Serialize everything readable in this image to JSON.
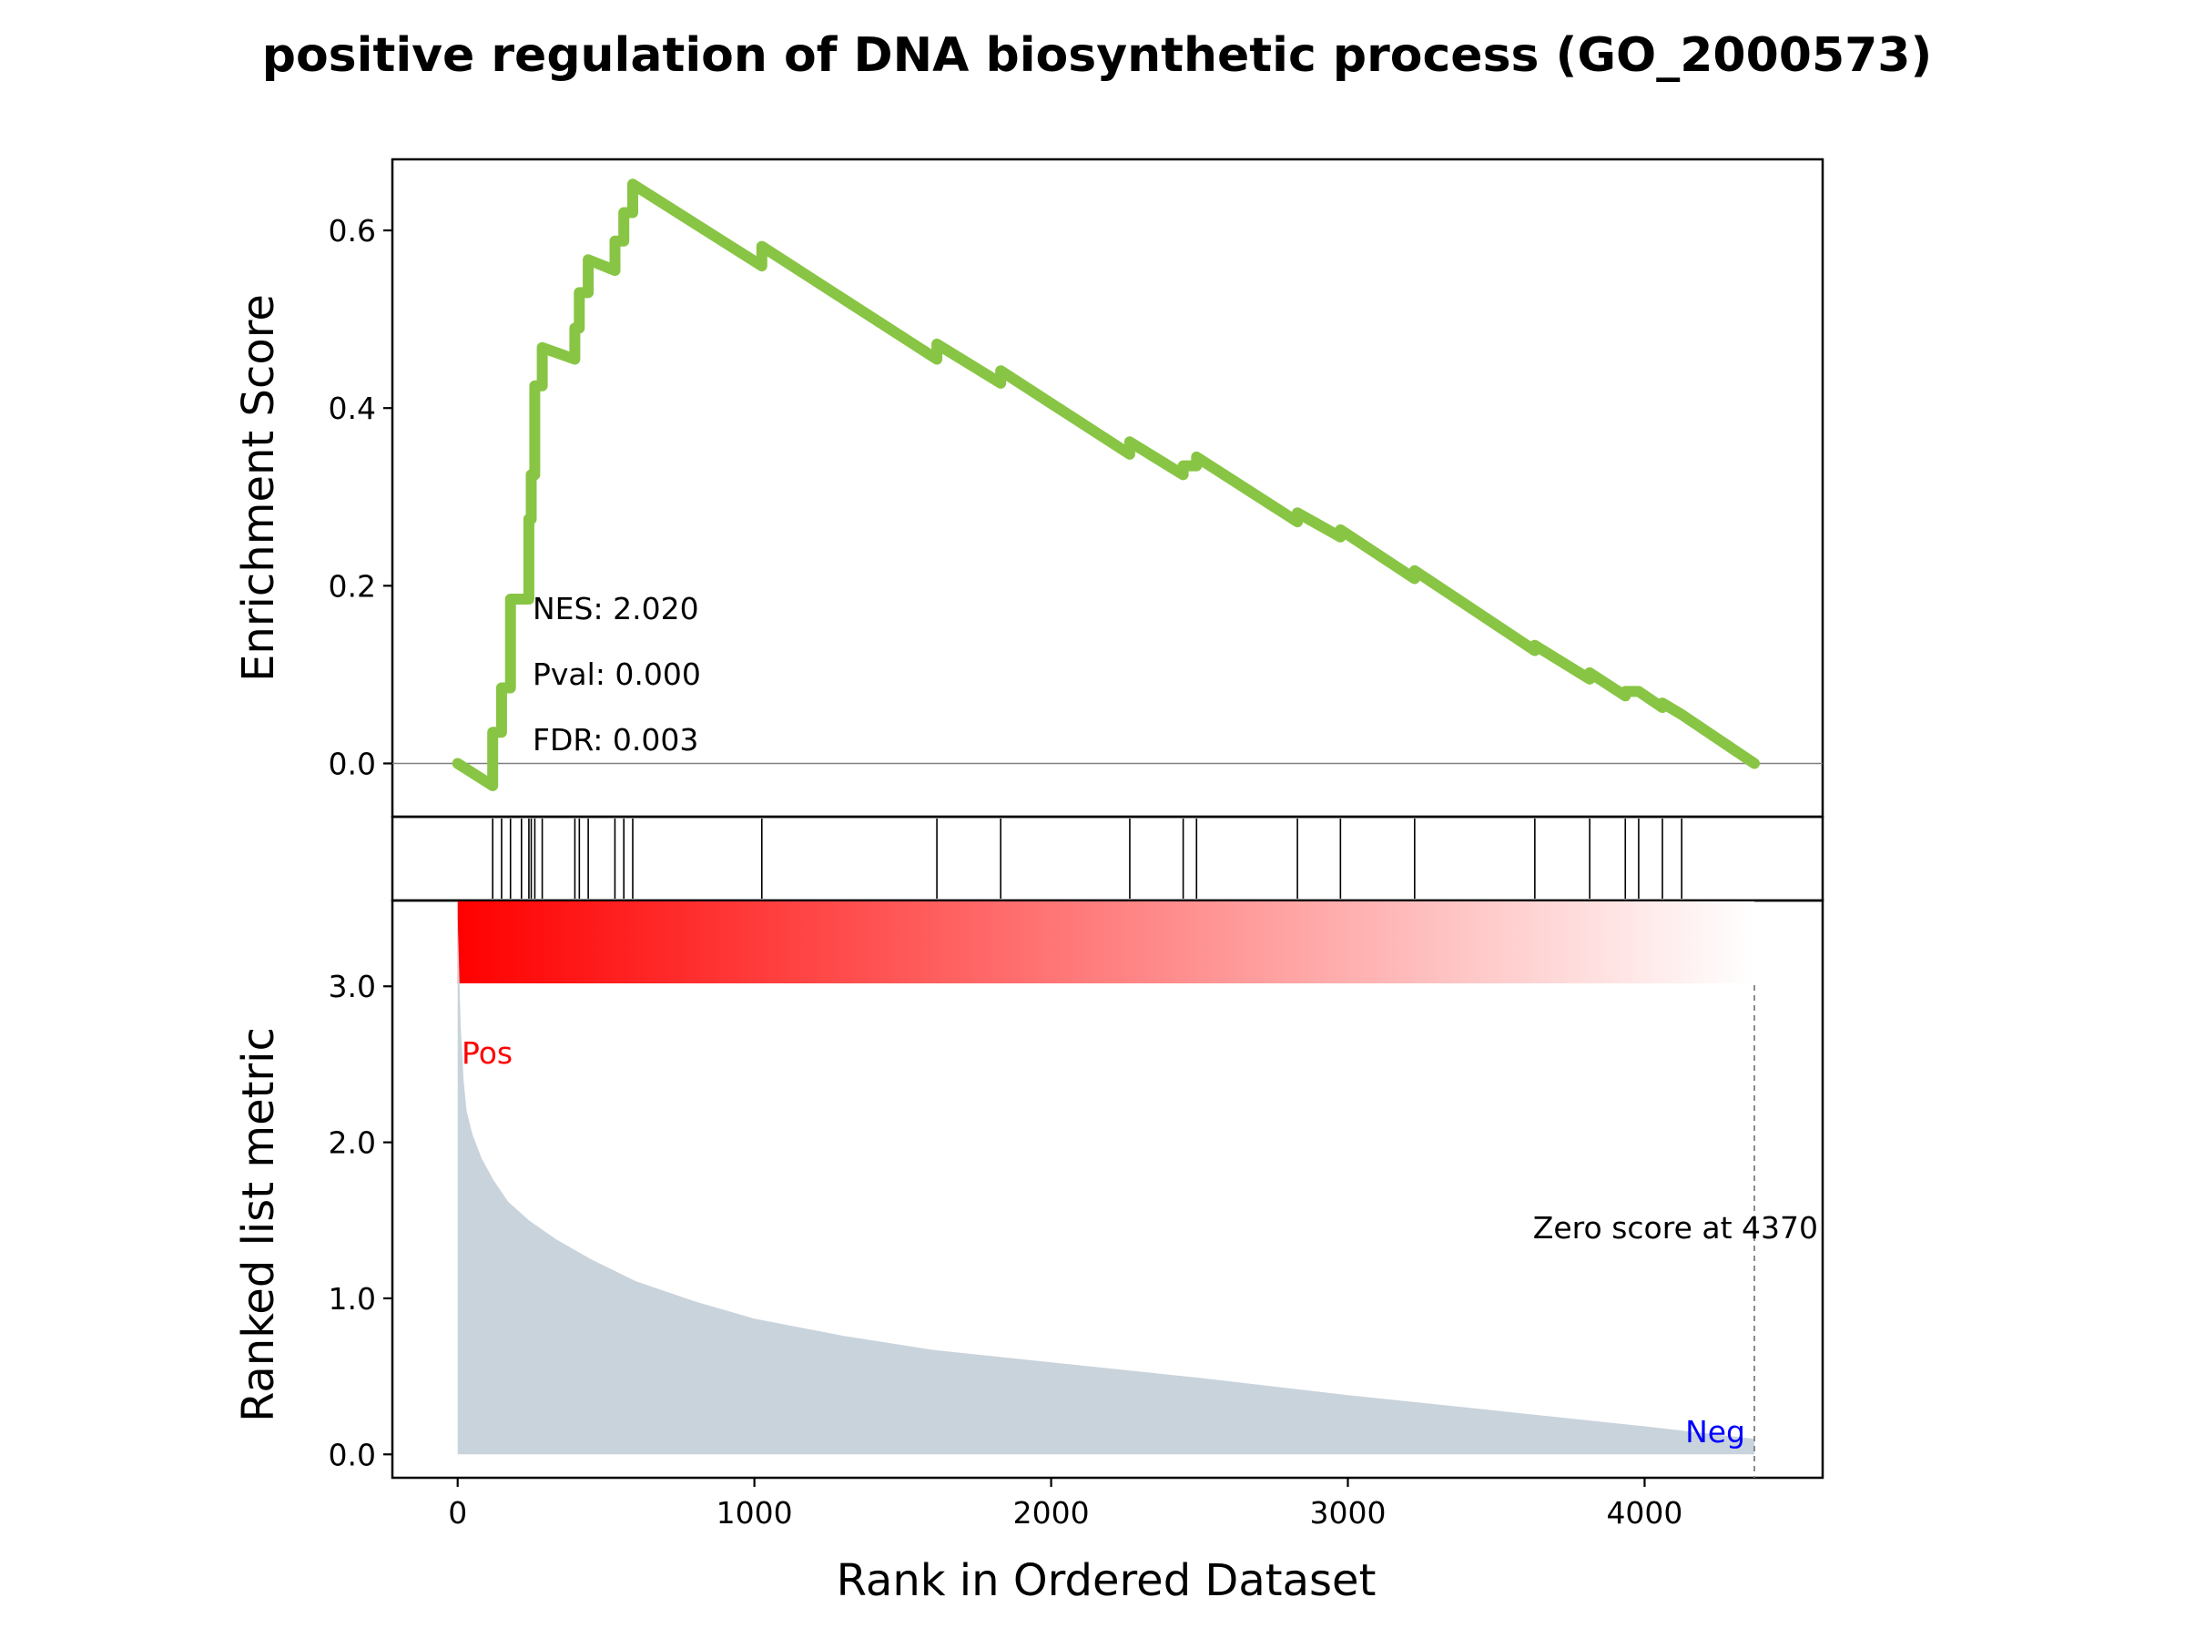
{
  "chart_data": {
    "type": "line",
    "title": "positive regulation of DNA biosynthetic process (GO_2000573)",
    "xlabel": "Rank in Ordered Dataset",
    "xlim": [
      -220,
      4600
    ],
    "x_ticks": [
      "0",
      "1000",
      "2000",
      "3000",
      "4000"
    ],
    "colors": {
      "es_line": "#88c544",
      "hits": "#000000",
      "metric_fill": "#c9d3dc",
      "pos_label": "#ff0000",
      "neg_label": "#0000ff",
      "gradient_start": "#ff0000",
      "gradient_end": "#ffffff"
    },
    "enrichment": {
      "ylabel": "Enrichment Score",
      "ylim": [
        -0.06,
        0.68
      ],
      "y_ticks": [
        "0.0",
        "0.2",
        "0.4",
        "0.6"
      ],
      "nes": "NES: 2.020",
      "pval": "Pval: 0.000",
      "fdr": "FDR: 0.003",
      "points": [
        [
          0,
          0.0
        ],
        [
          118,
          -0.025
        ],
        [
          118,
          0.035
        ],
        [
          148,
          0.035
        ],
        [
          148,
          0.085
        ],
        [
          178,
          0.085
        ],
        [
          178,
          0.185
        ],
        [
          240,
          0.185
        ],
        [
          240,
          0.275
        ],
        [
          248,
          0.275
        ],
        [
          248,
          0.325
        ],
        [
          260,
          0.325
        ],
        [
          260,
          0.425
        ],
        [
          285,
          0.425
        ],
        [
          285,
          0.468
        ],
        [
          395,
          0.455
        ],
        [
          395,
          0.49
        ],
        [
          410,
          0.49
        ],
        [
          410,
          0.53
        ],
        [
          440,
          0.53
        ],
        [
          440,
          0.567
        ],
        [
          530,
          0.555
        ],
        [
          530,
          0.588
        ],
        [
          560,
          0.588
        ],
        [
          560,
          0.62
        ],
        [
          590,
          0.62
        ],
        [
          590,
          0.652
        ],
        [
          1025,
          0.56
        ],
        [
          1025,
          0.582
        ],
        [
          1615,
          0.455
        ],
        [
          1615,
          0.472
        ],
        [
          1830,
          0.428
        ],
        [
          1830,
          0.442
        ],
        [
          2265,
          0.348
        ],
        [
          2265,
          0.362
        ],
        [
          2445,
          0.325
        ],
        [
          2445,
          0.335
        ],
        [
          2490,
          0.335
        ],
        [
          2490,
          0.345
        ],
        [
          2830,
          0.272
        ],
        [
          2830,
          0.282
        ],
        [
          2975,
          0.255
        ],
        [
          2975,
          0.263
        ],
        [
          3225,
          0.208
        ],
        [
          3225,
          0.217
        ],
        [
          3630,
          0.127
        ],
        [
          3630,
          0.133
        ],
        [
          3815,
          0.095
        ],
        [
          3815,
          0.102
        ],
        [
          3935,
          0.076
        ],
        [
          3935,
          0.081
        ],
        [
          3980,
          0.081
        ],
        [
          4060,
          0.063
        ],
        [
          4060,
          0.068
        ],
        [
          4125,
          0.055
        ],
        [
          4370,
          0.0
        ]
      ],
      "zero_line": 0.0
    },
    "hits": [
      118,
      148,
      178,
      215,
      240,
      248,
      260,
      285,
      395,
      410,
      440,
      530,
      560,
      590,
      1025,
      1615,
      1830,
      2265,
      2445,
      2490,
      2830,
      2975,
      3225,
      3630,
      3815,
      3935,
      3980,
      4060,
      4125
    ],
    "ranked_metric": {
      "ylabel": "Ranked list metric",
      "ylim": [
        -0.15,
        3.55
      ],
      "y_ticks": [
        "0.0",
        "1.0",
        "2.0",
        "3.0"
      ],
      "pos_label": "Pos",
      "neg_label": "Neg",
      "zero_score_label": "Zero score at 4370",
      "zero_score_at": 4370,
      "curve": [
        [
          0,
          3.45
        ],
        [
          10,
          2.75
        ],
        [
          20,
          2.4
        ],
        [
          30,
          2.2
        ],
        [
          50,
          2.05
        ],
        [
          80,
          1.9
        ],
        [
          120,
          1.76
        ],
        [
          170,
          1.62
        ],
        [
          240,
          1.5
        ],
        [
          330,
          1.38
        ],
        [
          450,
          1.25
        ],
        [
          600,
          1.11
        ],
        [
          800,
          0.98
        ],
        [
          1000,
          0.87
        ],
        [
          1300,
          0.76
        ],
        [
          1600,
          0.67
        ],
        [
          2000,
          0.59
        ],
        [
          2500,
          0.49
        ],
        [
          3000,
          0.38
        ],
        [
          3500,
          0.28
        ],
        [
          4000,
          0.18
        ],
        [
          4370,
          0.1
        ]
      ]
    }
  }
}
